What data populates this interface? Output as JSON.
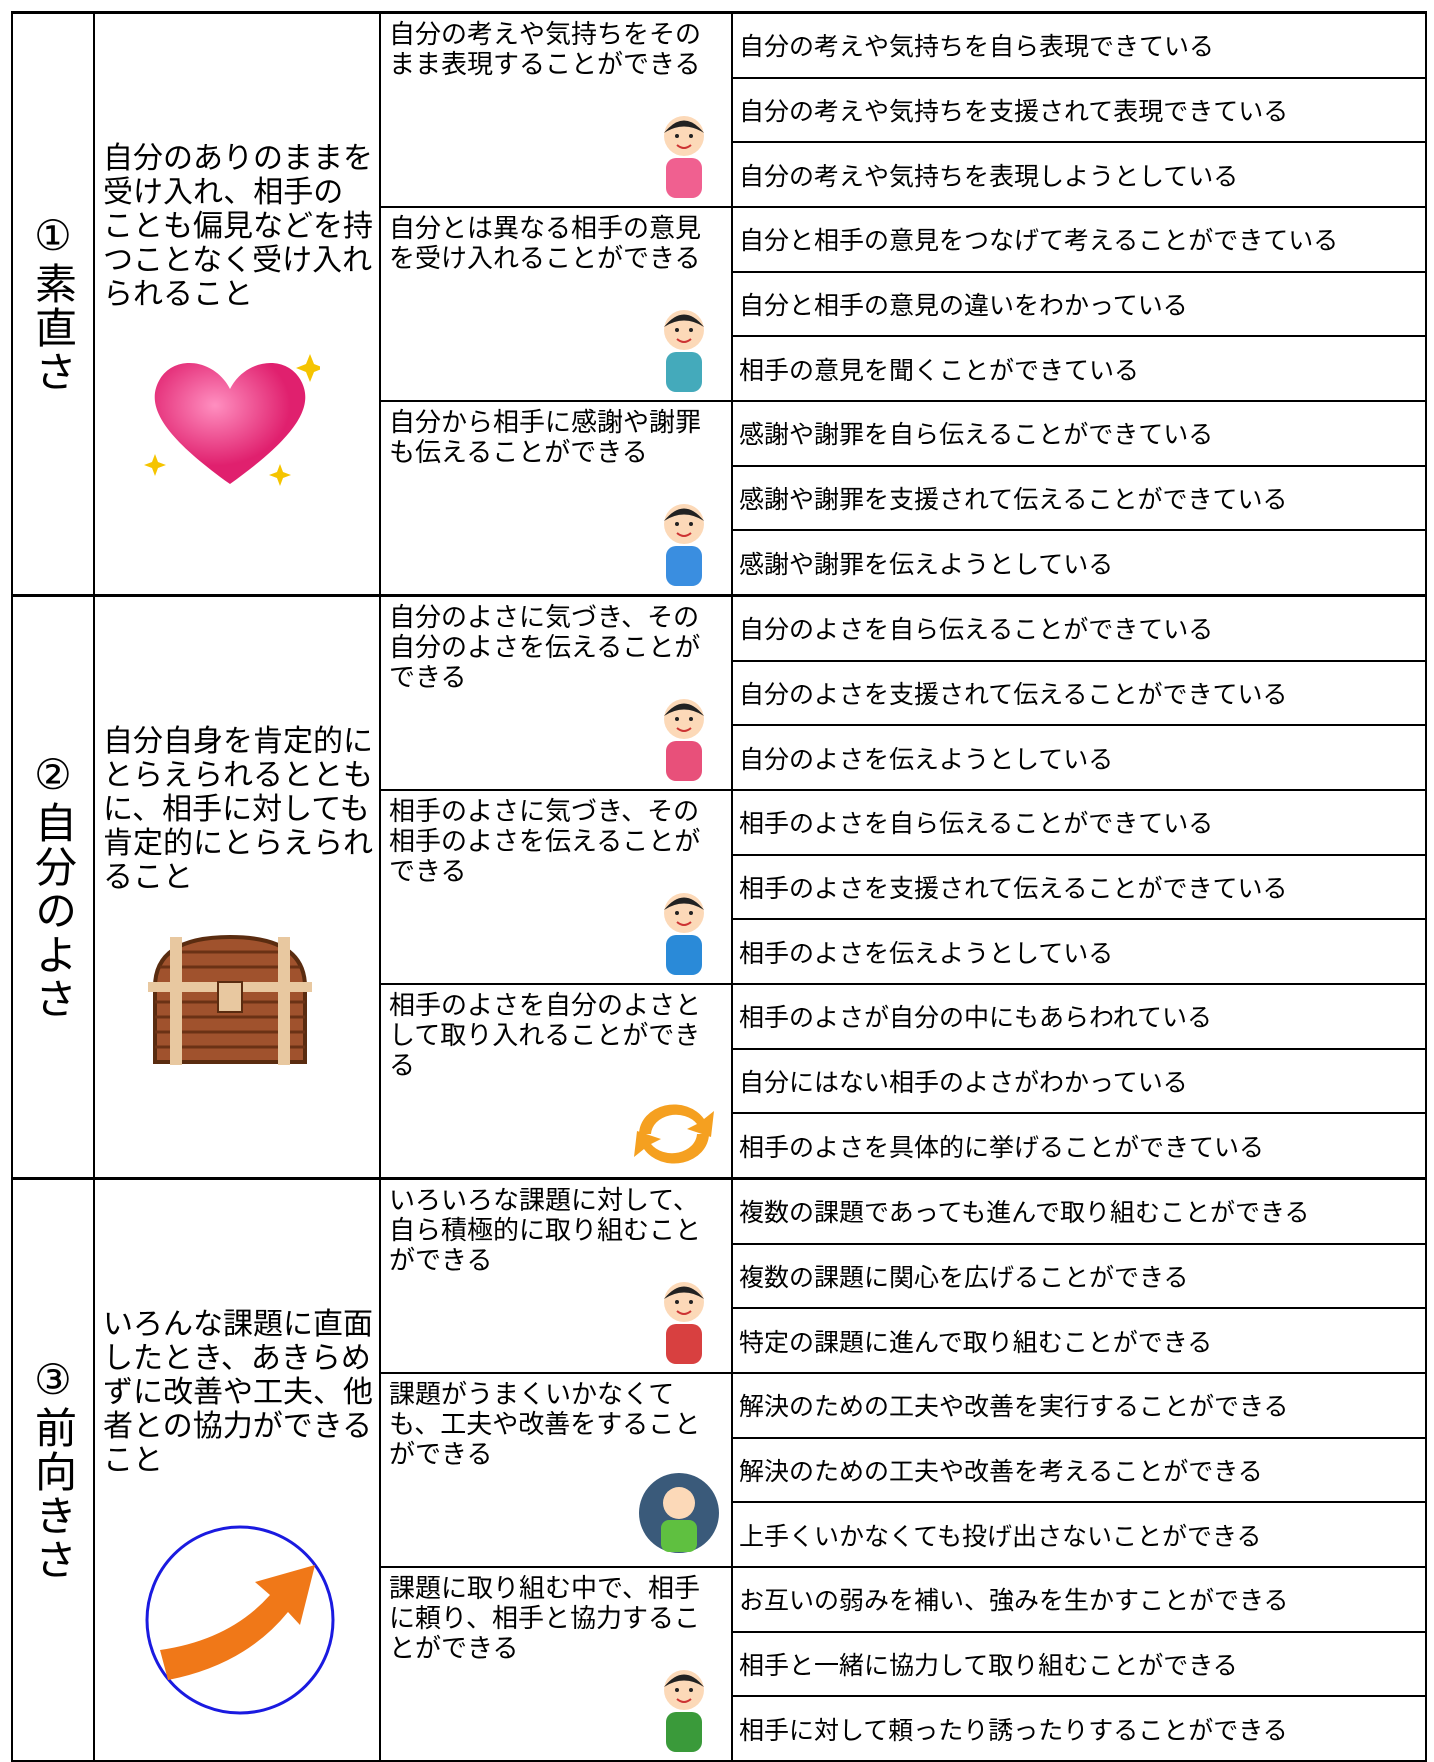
{
  "sections": [
    {
      "label": "①素直さ",
      "description": "自分のありのままを受け入れ、相手のことも偏見などを持つことなく受け入れられること",
      "items": [
        {
          "text": "自分の考えや気持ちをそのまま表現することができる",
          "criteria": [
            "自分の考えや気持ちを自ら表現できている",
            "自分の考えや気持ちを支援されて表現できている",
            "自分の考えや気持ちを表現しようとしている"
          ]
        },
        {
          "text": "自分とは異なる相手の意見を受け入れることができる",
          "criteria": [
            "自分と相手の意見をつなげて考えることができている",
            "自分と相手の意見の違いをわかっている",
            "相手の意見を聞くことができている"
          ]
        },
        {
          "text": "自分から相手に感謝や謝罪も伝えることができる",
          "criteria": [
            "感謝や謝罪を自ら伝えることができている",
            "感謝や謝罪を支援されて伝えることができている",
            "感謝や謝罪を伝えようとしている"
          ]
        }
      ]
    },
    {
      "label": "②自分のよさ",
      "description": "自分自身を肯定的にとらえられるとともに、相手に対しても肯定的にとらえられること",
      "items": [
        {
          "text": "自分のよさに気づき、その自分のよさを伝えることができる",
          "criteria": [
            "自分のよさを自ら伝えることができている",
            "自分のよさを支援されて伝えることができている",
            "自分のよさを伝えようとしている"
          ]
        },
        {
          "text": "相手のよさに気づき、その相手のよさを伝えることができる",
          "criteria": [
            "相手のよさを自ら伝えることができている",
            "相手のよさを支援されて伝えることができている",
            "相手のよさを伝えようとしている"
          ]
        },
        {
          "text": "相手のよさを自分のよさとして取り入れることができる",
          "criteria": [
            "相手のよさが自分の中にもあらわれている",
            "自分にはない相手のよさがわかっている",
            "相手のよさを具体的に挙げることができている"
          ]
        }
      ]
    },
    {
      "label": "③前向きさ",
      "description": "いろんな課題に直面したとき、あきらめずに改善や工夫、他者との協力ができること",
      "items": [
        {
          "text": "いろいろな課題に対して、自ら積極的に取り組むことができる",
          "criteria": [
            "複数の課題であっても進んで取り組むことができる",
            "複数の課題に関心を広げることができる",
            "特定の課題に進んで取り組むことができる"
          ]
        },
        {
          "text": "課題がうまくいかなくても、工夫や改善をすることができる",
          "criteria": [
            "解決のための工夫や改善を実行することができる",
            "解決のための工夫や改善を考えることができる",
            "上手くいかなくても投げ出さないことができる"
          ]
        },
        {
          "text": "課題に取り組む中で、相手に頼り、相手と協力することができる",
          "criteria": [
            "お互いの弱みを補い、強みを生かすことができる",
            "相手と一緒に協力して取り組むことができる",
            "相手に対して頼ったり誘ったりすることができる"
          ]
        }
      ]
    }
  ]
}
